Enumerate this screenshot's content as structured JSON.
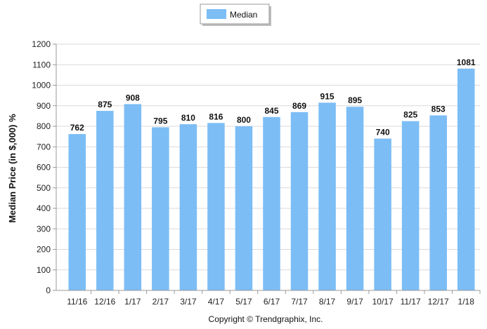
{
  "chart_data": {
    "type": "bar",
    "categories": [
      "11/16",
      "12/16",
      "1/17",
      "2/17",
      "3/17",
      "4/17",
      "5/17",
      "6/17",
      "7/17",
      "8/17",
      "9/17",
      "10/17",
      "11/17",
      "12/17",
      "1/18"
    ],
    "series": [
      {
        "name": "Median",
        "values": [
          762,
          875,
          908,
          795,
          810,
          816,
          800,
          845,
          869,
          915,
          895,
          740,
          825,
          853,
          1081
        ],
        "color": "#7cbdf5"
      }
    ],
    "ylabel": "Median Price (in $,000) %",
    "xlabel": "",
    "ylim": [
      0,
      1200
    ],
    "yticks": [
      0,
      100,
      200,
      300,
      400,
      500,
      600,
      700,
      800,
      900,
      1000,
      1100,
      1200
    ],
    "grid": true,
    "legend_position": "top-center",
    "show_data_labels": true
  },
  "footer": {
    "copyright": "Copyright © Trendgraphix, Inc."
  },
  "colors": {
    "bar": "#7cbdf5",
    "grid": "#d9d9d9",
    "axis": "#9a9a9a"
  }
}
